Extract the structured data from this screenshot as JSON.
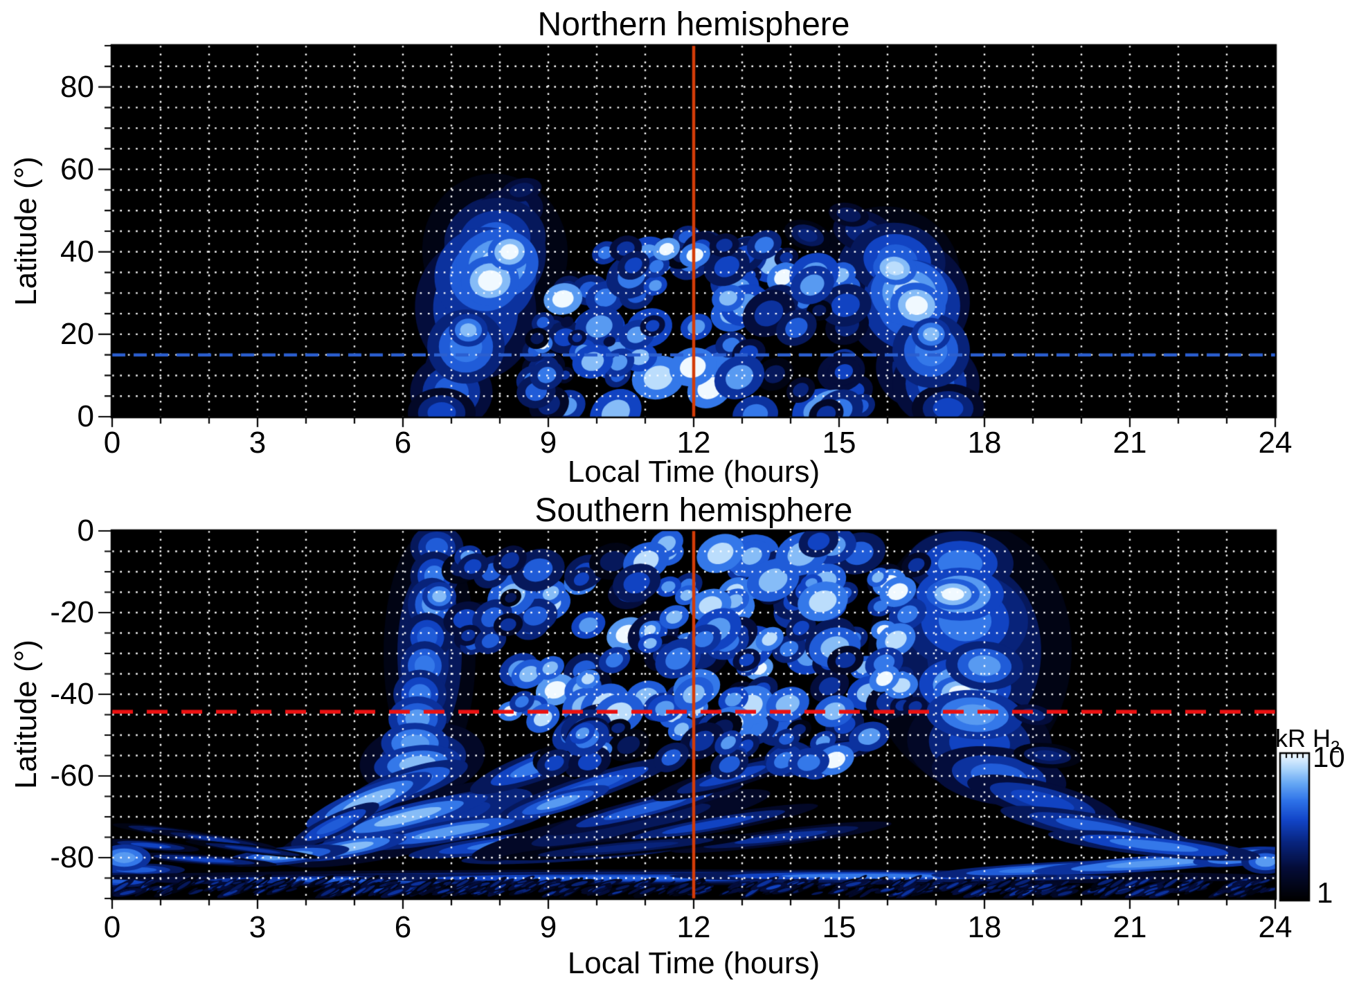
{
  "colorbar": {
    "label_main": "kR H",
    "label_sub": "2",
    "max": "10",
    "min": "1",
    "scale": "log",
    "stops": [
      [
        0,
        "#000000"
      ],
      [
        0.22,
        "#040c38"
      ],
      [
        0.4,
        "#082580"
      ],
      [
        0.55,
        "#1245c8"
      ],
      [
        0.68,
        "#2e72e8"
      ],
      [
        0.8,
        "#66a8f4"
      ],
      [
        0.9,
        "#abd4fb"
      ],
      [
        1,
        "#f0f9ff"
      ]
    ]
  },
  "chart_data": [
    {
      "type": "heatmap",
      "title": "Northern hemisphere",
      "xlabel": "Local Time (hours)",
      "ylabel": "Latitude (°)",
      "x_range": [
        0,
        24
      ],
      "y_range": [
        0,
        90
      ],
      "x_ticks": [
        0,
        3,
        6,
        9,
        12,
        15,
        18,
        21,
        24
      ],
      "y_ticks": [
        0,
        20,
        40,
        60,
        80
      ],
      "x_minor_step": 1,
      "y_minor_step": 5,
      "grid": {
        "style": "dotted",
        "color": "#ffffff",
        "x_step": 1,
        "y_step": 5
      },
      "background": "#000000",
      "value_units": "kR",
      "value_min": 1,
      "value_max": 10,
      "vline": {
        "x": 12,
        "color": "#d43c08",
        "width": 4.5
      },
      "hline": {
        "y": 15,
        "color": "#2b5fd0",
        "dash": [
          19,
          12
        ],
        "width": 4.5
      },
      "feature_format": "[hour, latitude, radius_hours, radius_deg, peak_kR, tilt_deg]",
      "features": [
        [
          7.1,
          10,
          0.95,
          14,
          2.2,
          0
        ],
        [
          7.9,
          40,
          1.5,
          19,
          2.6,
          -8
        ],
        [
          8.2,
          50,
          1.0,
          8,
          2.4,
          -10
        ],
        [
          8.45,
          55,
          0.6,
          4,
          2.1,
          -12
        ],
        [
          7.5,
          26,
          1.25,
          17,
          3.6,
          -6
        ],
        [
          7.0,
          6,
          0.85,
          9,
          3.8,
          0
        ],
        [
          6.8,
          1,
          0.7,
          6,
          3.2,
          0
        ],
        [
          7.9,
          43,
          1.05,
          10,
          4.2,
          -8
        ],
        [
          7.7,
          34,
          1.05,
          12,
          6.0,
          -6
        ],
        [
          7.3,
          17,
          0.8,
          9,
          5.2,
          0
        ],
        [
          7.95,
          37,
          0.85,
          8.5,
          8.5,
          -8
        ],
        [
          7.8,
          33,
          0.6,
          6,
          10,
          -6
        ],
        [
          8.2,
          40,
          0.45,
          4.5,
          9.5,
          -8
        ],
        [
          7.35,
          21,
          0.4,
          4,
          7,
          0
        ],
        [
          9.4,
          31,
          0.45,
          4.5,
          2.6,
          -20
        ],
        [
          9.1,
          22,
          0.4,
          3.5,
          2.4,
          -15
        ],
        [
          8.9,
          12,
          0.45,
          4,
          3.0,
          -10
        ],
        [
          16.6,
          12,
          1.2,
          14,
          2.4,
          0
        ],
        [
          16.0,
          35,
          1.5,
          16,
          2.6,
          10
        ],
        [
          15.5,
          45,
          0.9,
          7,
          2.3,
          12
        ],
        [
          15.2,
          49,
          0.6,
          4,
          2.0,
          12
        ],
        [
          16.4,
          28,
          1.3,
          15,
          3.8,
          8
        ],
        [
          17.0,
          8,
          0.9,
          10,
          4.0,
          0
        ],
        [
          17.25,
          2,
          0.75,
          6,
          3.4,
          0
        ],
        [
          16.2,
          38,
          1.0,
          9,
          4.4,
          8
        ],
        [
          16.5,
          27,
          1.0,
          11,
          6.0,
          6
        ],
        [
          16.9,
          16,
          0.8,
          9,
          5.2,
          0
        ],
        [
          16.45,
          30,
          0.8,
          8,
          8.5,
          6
        ],
        [
          16.6,
          27,
          0.55,
          5.5,
          10,
          6
        ],
        [
          16.15,
          36,
          0.45,
          4,
          9,
          8
        ],
        [
          16.9,
          20,
          0.4,
          4,
          7,
          0
        ],
        [
          14.35,
          44,
          0.5,
          3.5,
          2.6,
          18
        ],
        [
          14.65,
          36,
          0.45,
          3.5,
          2.4,
          15
        ]
      ],
      "speckles": [
        {
          "t": [
            9.3,
            15.6
          ],
          "lat": [
            0,
            40
          ],
          "n": 85,
          "v": [
            1.6,
            7.5
          ],
          "white": 0.1,
          "seed": 7,
          "r": [
            0.38,
            3.6
          ]
        },
        {
          "t": [
            10.3,
            14.0
          ],
          "lat": [
            36,
            45
          ],
          "n": 16,
          "v": [
            1.6,
            5
          ],
          "white": 0.05,
          "seed": 11,
          "r": [
            0.33,
            3.0
          ]
        },
        {
          "t": [
            8.6,
            9.6
          ],
          "lat": [
            0,
            25
          ],
          "n": 12,
          "v": [
            1.8,
            5
          ],
          "white": 0.06,
          "seed": 13,
          "r": [
            0.3,
            3.0
          ]
        }
      ]
    },
    {
      "type": "heatmap",
      "title": "Southern hemisphere",
      "xlabel": "Local Time (hours)",
      "ylabel": "Latitude (°)",
      "x_range": [
        0,
        24
      ],
      "y_range": [
        -90,
        0
      ],
      "x_ticks": [
        0,
        3,
        6,
        9,
        12,
        15,
        18,
        21,
        24
      ],
      "y_ticks": [
        0,
        -20,
        -40,
        -60,
        -80
      ],
      "x_minor_step": 1,
      "y_minor_step": 5,
      "grid": {
        "style": "dotted",
        "color": "#ffffff",
        "x_step": 1,
        "y_step": 5
      },
      "background": "#000000",
      "value_units": "kR",
      "value_min": 1,
      "value_max": 10,
      "vline": {
        "x": 12,
        "color": "#d43c08",
        "width": 4.5
      },
      "hline": {
        "y": -44.3,
        "color": "#ea1212",
        "dash": [
          30,
          20
        ],
        "width": 5.5
      },
      "feature_format": "[hour, latitude, radius_hours, radius_deg, peak_kR, tilt_deg]",
      "features": [
        [
          6.55,
          -30,
          0.95,
          30,
          2.5,
          0
        ],
        [
          6.4,
          -56,
          1.3,
          9,
          3.2,
          -8
        ],
        [
          6.7,
          -4,
          0.55,
          5.5,
          4.2,
          0
        ],
        [
          6.65,
          -11,
          0.5,
          6,
          4.6,
          0
        ],
        [
          6.6,
          -18,
          0.5,
          6.5,
          5.8,
          0
        ],
        [
          6.75,
          -16,
          0.35,
          3.5,
          7,
          0
        ],
        [
          6.5,
          -26,
          0.5,
          6,
          4.4,
          0
        ],
        [
          6.45,
          -33,
          0.5,
          6,
          5.2,
          0
        ],
        [
          6.35,
          -40,
          0.55,
          6,
          5.0,
          0
        ],
        [
          6.3,
          -46,
          0.6,
          5.5,
          6.0,
          0
        ],
        [
          6.25,
          -52,
          0.7,
          5,
          6.3,
          0
        ],
        [
          6.3,
          -57,
          0.9,
          4.5,
          6.8,
          -6
        ],
        [
          6.5,
          -71,
          3.2,
          7,
          3.0,
          -14
        ],
        [
          6.1,
          -62,
          1.3,
          3.8,
          5.5,
          -18
        ],
        [
          5.3,
          -66,
          1.4,
          3.4,
          6.5,
          -22
        ],
        [
          6.1,
          -70,
          1.7,
          3.0,
          6.8,
          -14
        ],
        [
          7.0,
          -73.5,
          1.9,
          2.6,
          5.8,
          -10
        ],
        [
          8.2,
          -76.5,
          2.1,
          2.2,
          5.0,
          -7
        ],
        [
          9.6,
          -78.8,
          2.4,
          2.0,
          4.2,
          -4
        ],
        [
          4.6,
          -72,
          1.0,
          2.6,
          4.5,
          -25
        ],
        [
          4.9,
          -77.5,
          1.2,
          2.4,
          6.8,
          -10
        ],
        [
          3.6,
          -79.5,
          1.3,
          2.2,
          5.5,
          -6
        ],
        [
          1.1,
          -73.5,
          1.1,
          1.1,
          2.6,
          7
        ],
        [
          2.1,
          -75.5,
          1.3,
          1.1,
          2.9,
          8
        ],
        [
          0.8,
          -77,
          1.0,
          1.2,
          3.2,
          5
        ],
        [
          2.9,
          -78,
          1.4,
          1.0,
          2.7,
          7
        ],
        [
          1.9,
          -80.5,
          1.5,
          1.2,
          3.4,
          4
        ],
        [
          0.5,
          -83,
          1.0,
          1.6,
          4.2,
          0
        ],
        [
          0.25,
          -80,
          0.55,
          3.2,
          6.2,
          0
        ],
        [
          0.15,
          -85.5,
          0.8,
          1.8,
          4.5,
          0
        ],
        [
          12,
          -84.8,
          12.5,
          1.9,
          3.2,
          0
        ],
        [
          5.5,
          -85.5,
          5,
          1.4,
          3.8,
          0
        ],
        [
          10.5,
          -85,
          5.5,
          1.3,
          4.4,
          0
        ],
        [
          15.5,
          -84.5,
          4,
          1.4,
          4.6,
          0
        ],
        [
          19.3,
          -82.8,
          2.4,
          1.6,
          5.2,
          -3
        ],
        [
          21.6,
          -81.3,
          2.6,
          1.9,
          6.2,
          -4
        ],
        [
          23.3,
          -79.8,
          1.0,
          2.2,
          6.6,
          -6
        ],
        [
          23.8,
          -81,
          0.5,
          3,
          5.5,
          0
        ],
        [
          10.5,
          -72,
          4.5,
          6,
          2.0,
          -12
        ],
        [
          8.8,
          -57.5,
          1.5,
          3.6,
          4.6,
          -20
        ],
        [
          9.8,
          -63,
          1.9,
          3.0,
          4.4,
          -18
        ],
        [
          9.2,
          -66.5,
          1.1,
          2.4,
          6.0,
          -16
        ],
        [
          11.0,
          -68,
          2.1,
          2.6,
          3.8,
          -14
        ],
        [
          12.3,
          -72,
          2.3,
          2.2,
          3.3,
          -10
        ],
        [
          13.8,
          -75,
          2.3,
          2.0,
          2.9,
          -7
        ],
        [
          10.6,
          -77.5,
          2.6,
          1.8,
          2.6,
          -5
        ],
        [
          14.6,
          -55,
          1.4,
          3.0,
          3.8,
          -14
        ],
        [
          12.8,
          -60,
          1.7,
          2.8,
          3.4,
          -16
        ],
        [
          17.7,
          -30,
          2.1,
          32,
          2.6,
          3
        ],
        [
          17.9,
          -52,
          1.5,
          12,
          3.4,
          5
        ],
        [
          18.3,
          -60,
          1.4,
          7,
          4.0,
          8
        ],
        [
          17.5,
          -8,
          1.1,
          8,
          4.6,
          0
        ],
        [
          17.6,
          -22,
          1.3,
          12,
          5.0,
          2
        ],
        [
          17.5,
          -15.5,
          0.9,
          6.5,
          8.0,
          0
        ],
        [
          17.35,
          -15.5,
          0.55,
          3.8,
          10,
          0
        ],
        [
          17.6,
          -38,
          0.95,
          7,
          8.0,
          3
        ],
        [
          17.5,
          -39.5,
          0.55,
          4,
          10,
          0
        ],
        [
          17.8,
          -45,
          1.0,
          6,
          6.2,
          4
        ],
        [
          18.0,
          -33,
          0.8,
          6,
          5.6,
          4
        ],
        [
          19.2,
          -66,
          1.6,
          4.5,
          3.6,
          14
        ],
        [
          20.3,
          -72.5,
          2.0,
          3.2,
          4.2,
          10
        ],
        [
          21.5,
          -77,
          2.2,
          2.6,
          4.8,
          6
        ],
        [
          19.0,
          -45,
          0.6,
          3.5,
          2.3,
          10
        ],
        [
          19.3,
          -55,
          0.7,
          3,
          2.5,
          5
        ]
      ],
      "speckles": [
        {
          "t": [
            8.2,
            16.6
          ],
          "lat": [
            -50,
            -2
          ],
          "n": 150,
          "v": [
            2,
            8.5
          ],
          "white": 0.17,
          "seed": 21,
          "r": [
            0.38,
            3.4
          ]
        },
        {
          "t": [
            9.0,
            16.0
          ],
          "lat": [
            -58,
            -48
          ],
          "n": 30,
          "v": [
            2,
            6
          ],
          "white": 0.08,
          "seed": 23,
          "r": [
            0.36,
            3.0
          ]
        },
        {
          "t": [
            7.1,
            8.3
          ],
          "lat": [
            -30,
            -3
          ],
          "n": 14,
          "v": [
            2,
            6
          ],
          "white": 0.05,
          "seed": 29,
          "r": [
            0.33,
            3.0
          ]
        },
        {
          "t": [
            0,
            24
          ],
          "lat": [
            -88.8,
            -85.8
          ],
          "n": 420,
          "v": [
            1.3,
            3.2
          ],
          "white": 0,
          "seed": 31,
          "r": [
            0.22,
            0.55
          ]
        }
      ]
    }
  ]
}
